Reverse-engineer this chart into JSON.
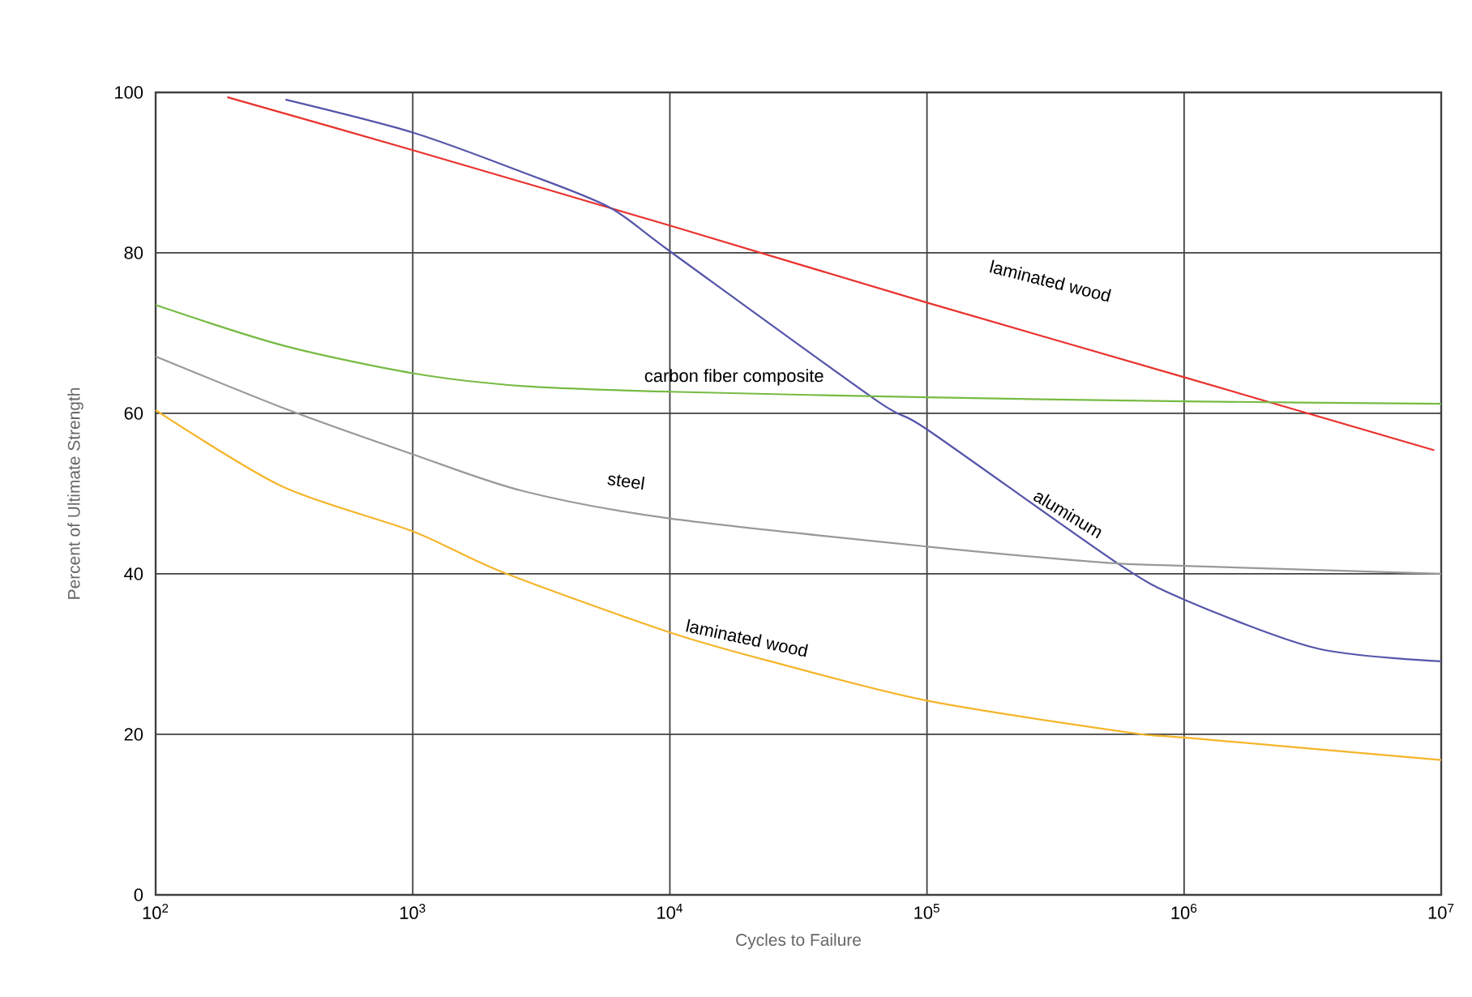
{
  "chart_data": {
    "type": "line",
    "xlabel": "Cycles to Failure",
    "ylabel": "Percent of Ultimate Strength",
    "log": "x",
    "grid": true,
    "xlim": [
      100,
      10000000
    ],
    "ylim": [
      0,
      100
    ],
    "xticks": [
      {
        "value": 100,
        "label": "10$^{2}$"
      },
      {
        "value": 1000,
        "label": "10$^{3}$"
      },
      {
        "value": 10000,
        "label": "10$^{4}$"
      },
      {
        "value": 100000,
        "label": "10$^{5}$"
      },
      {
        "value": 1000000,
        "label": "10$^{6}$"
      },
      {
        "value": 10000000,
        "label": "10$^{7}$"
      }
    ],
    "yticks": [
      0,
      20,
      40,
      60,
      80,
      100
    ],
    "series": [
      {
        "name": "laminated wood",
        "color": "#e8322d",
        "x": [
          190,
          1000,
          10000,
          100000,
          1000000,
          9400000
        ],
        "values": [
          99.4,
          92.8,
          83.4,
          73.8,
          64.5,
          55.4
        ]
      },
      {
        "name": "aluminum",
        "color": "#5555aa",
        "x": [
          320,
          1000,
          2700,
          5800,
          10000,
          63000,
          100000,
          540000,
          1000000,
          3300000,
          10000000
        ],
        "values": [
          99.1,
          95.0,
          90.0,
          85.7,
          80.2,
          61.7,
          58.0,
          41.5,
          36.8,
          30.7,
          29.1
        ]
      },
      {
        "name": "carbon fiber composite",
        "color": "#77bb44",
        "x": [
          100,
          310,
          1000,
          2700,
          10000,
          100000,
          1000000,
          10000000
        ],
        "values": [
          73.5,
          68.5,
          65.0,
          63.4,
          62.7,
          62.0,
          61.5,
          61.2
        ]
      },
      {
        "name": "steel",
        "color": "#999999",
        "x": [
          100,
          330,
          1000,
          2700,
          10000,
          100000,
          490000,
          1000000,
          10000000
        ],
        "values": [
          67.1,
          60.4,
          54.9,
          50.3,
          46.9,
          43.4,
          41.4,
          41.0,
          40.0
        ]
      },
      {
        "name": "laminated wood",
        "color": "#f5b52a",
        "x": [
          100,
          310,
          1000,
          2240,
          10000,
          26000,
          100000,
          620000,
          1000000,
          10000000
        ],
        "values": [
          60.4,
          50.9,
          45.3,
          40.2,
          32.7,
          28.9,
          24.2,
          20.2,
          19.6,
          16.8
        ]
      }
    ]
  }
}
